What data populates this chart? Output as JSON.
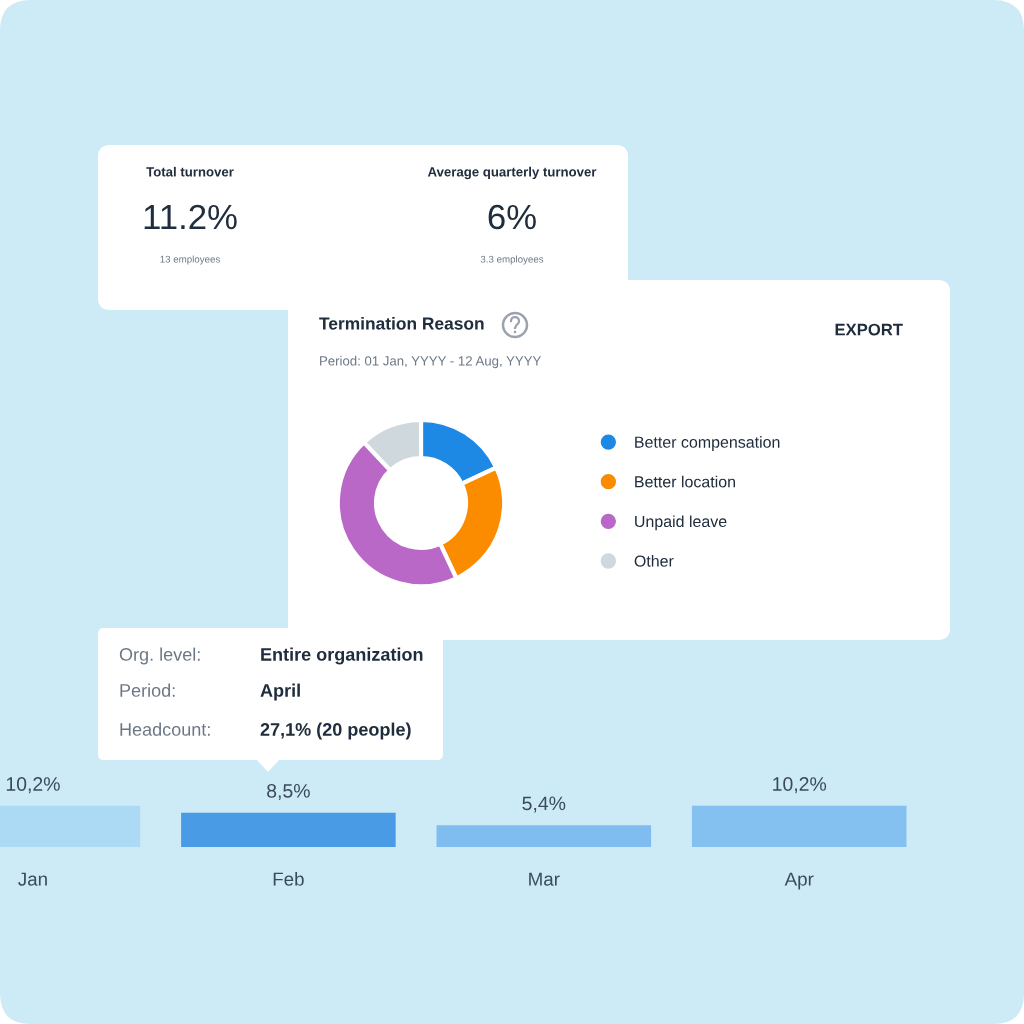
{
  "chart_data": [
    {
      "type": "other",
      "annotations": [
        "Total turnover",
        "11.2%",
        "13 employees",
        "Average quarterly turnover",
        "6%",
        "3.3 employees"
      ]
    },
    {
      "type": "donut",
      "title": "Termination Reason",
      "subtitle": "Period: 01 Jan, YYYY - 12 Aug, YYYY",
      "annotations": [
        "EXPORT"
      ],
      "categories": [
        "Better compensation",
        "Better location",
        "Unpaid leave",
        "Other"
      ],
      "values": [
        18,
        25,
        45,
        12
      ],
      "colors": [
        "#1e88e5",
        "#fb8c00",
        "#ba68c8",
        "#cfd8dc"
      ],
      "legend": "right"
    },
    {
      "type": "bar",
      "categories": [
        "Jan",
        "Feb",
        "Mar",
        "Apr"
      ],
      "values": [
        10.2,
        8.5,
        5.4,
        10.2
      ],
      "colors": [
        "#acd9f4",
        "#4a9be6",
        "#7fbdf0",
        "#84c1f0"
      ],
      "data_labels": true,
      "value_labels": [
        "10,2%",
        "8,5%",
        "5,4%",
        "10,2%"
      ],
      "annotations": [
        "Org. level:",
        "Entire organization",
        "Period:",
        "April",
        "Headcount:",
        "27,1% (20 people)"
      ]
    }
  ]
}
